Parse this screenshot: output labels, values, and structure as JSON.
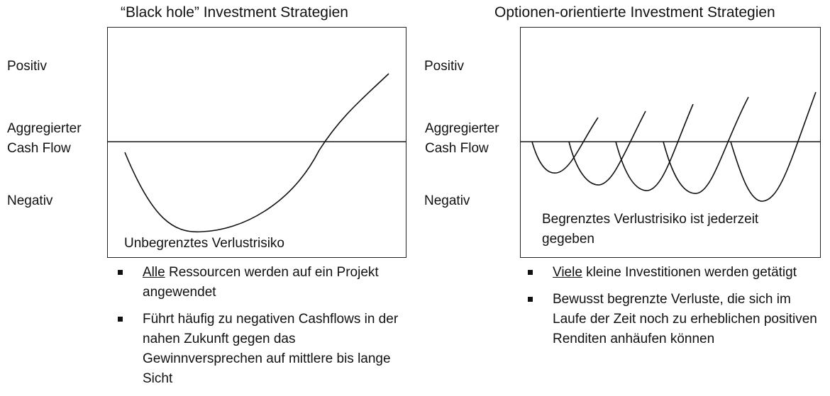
{
  "left": {
    "title": "“Black hole” Investment Strategien",
    "inner_label": "Unbegrenztes Verlustrisiko",
    "bullets": [
      {
        "underlined": "Alle",
        "rest": " Ressourcen werden auf ein Projekt angewendet"
      },
      {
        "underlined": "",
        "rest": "Führt häufig zu negativen Cashflows in der nahen Zukunft gegen das Gewinnversprechen auf mittlere bis lange Sicht"
      }
    ]
  },
  "right": {
    "title": "Optionen-orientierte Investment Strategien",
    "inner_label": "Begrenztes Verlustrisiko ist jederzeit gegeben",
    "bullets": [
      {
        "underlined": "Viele",
        "rest": " kleine Investitionen werden getätigt"
      },
      {
        "underlined": "",
        "rest": "Bewusst begrenzte Verluste, die sich im Laufe der Zeit noch zu erheblichen positiven Renditen anhäufen können"
      }
    ]
  },
  "axis_labels": {
    "positive": "Positiv",
    "middle_line1": "Aggregierter",
    "middle_line2": "Cash Flow",
    "negative": "Negativ"
  },
  "colors": {
    "line": "#111111",
    "frame": "#222222"
  }
}
